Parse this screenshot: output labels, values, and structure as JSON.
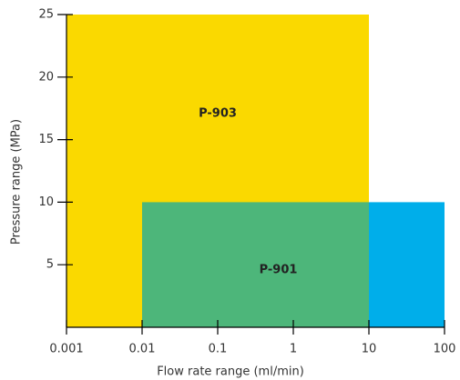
{
  "chart_data": {
    "type": "region",
    "xlabel": "Flow rate range (ml/min)",
    "ylabel": "Pressure range (MPa)",
    "xscale": "log",
    "xlim": [
      0.001,
      100
    ],
    "xticks": [
      0.001,
      0.01,
      0.1,
      1,
      10,
      100
    ],
    "ylim": [
      0,
      25
    ],
    "yticks": [
      5,
      10,
      15,
      20,
      25
    ],
    "series": [
      {
        "name": "P-903",
        "color": "#fad900",
        "x": [
          0.001,
          10
        ],
        "y": [
          0,
          25
        ]
      },
      {
        "name": "P-901",
        "color": "#4db67a",
        "x": [
          0.01,
          10
        ],
        "y": [
          0,
          10
        ]
      },
      {
        "name": null,
        "color": "#00aeea",
        "x": [
          10,
          100
        ],
        "y": [
          0,
          10
        ]
      }
    ]
  }
}
